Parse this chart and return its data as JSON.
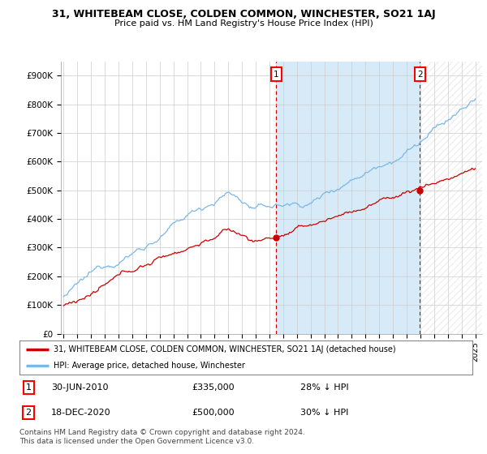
{
  "title": "31, WHITEBEAM CLOSE, COLDEN COMMON, WINCHESTER, SO21 1AJ",
  "subtitle": "Price paid vs. HM Land Registry's House Price Index (HPI)",
  "ylim": [
    0,
    950000
  ],
  "yticks": [
    0,
    100000,
    200000,
    300000,
    400000,
    500000,
    600000,
    700000,
    800000,
    900000
  ],
  "ytick_labels": [
    "£0",
    "£100K",
    "£200K",
    "£300K",
    "£400K",
    "£500K",
    "£600K",
    "£700K",
    "£800K",
    "£900K"
  ],
  "hpi_color": "#7ab8e8",
  "hpi_fill_color": "#d6eaf8",
  "price_color": "#cc0000",
  "marker_color": "#cc0000",
  "sale1_date": "30-JUN-2010",
  "sale1_price": 335000,
  "sale1_label": "£335,000",
  "sale1_pct": "28% ↓ HPI",
  "sale2_date": "18-DEC-2020",
  "sale2_price": 500000,
  "sale2_label": "£500,000",
  "sale2_pct": "30% ↓ HPI",
  "legend_line1": "31, WHITEBEAM CLOSE, COLDEN COMMON, WINCHESTER, SO21 1AJ (detached house)",
  "legend_line2": "HPI: Average price, detached house, Winchester",
  "footnote": "Contains HM Land Registry data © Crown copyright and database right 2024.\nThis data is licensed under the Open Government Licence v3.0.",
  "background_color": "#ffffff",
  "grid_color": "#cccccc",
  "sale1_x": 2010.5,
  "sale2_x": 2020.96,
  "xstart": 1995,
  "xend": 2025
}
